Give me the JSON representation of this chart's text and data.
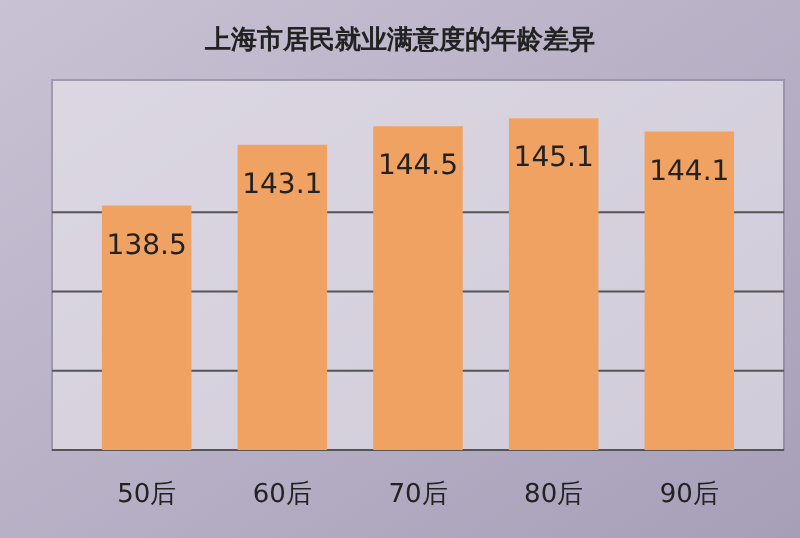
{
  "chart_data": {
    "type": "bar",
    "title": "上海市居民就业满意度的年龄差异",
    "categories": [
      "50后",
      "60后",
      "70后",
      "80后",
      "90后"
    ],
    "values": [
      138.5,
      143.1,
      144.5,
      145.1,
      144.1
    ],
    "color": "#f0a263",
    "data_labels": true,
    "ylim": [
      120,
      148
    ],
    "yticks": [
      {
        "value": 120,
        "label": null
      },
      {
        "value": 126,
        "label": null
      },
      {
        "value": 132,
        "label": null
      },
      {
        "value": 138,
        "label": null
      }
    ],
    "grid": "y",
    "tick_labels": "x"
  }
}
